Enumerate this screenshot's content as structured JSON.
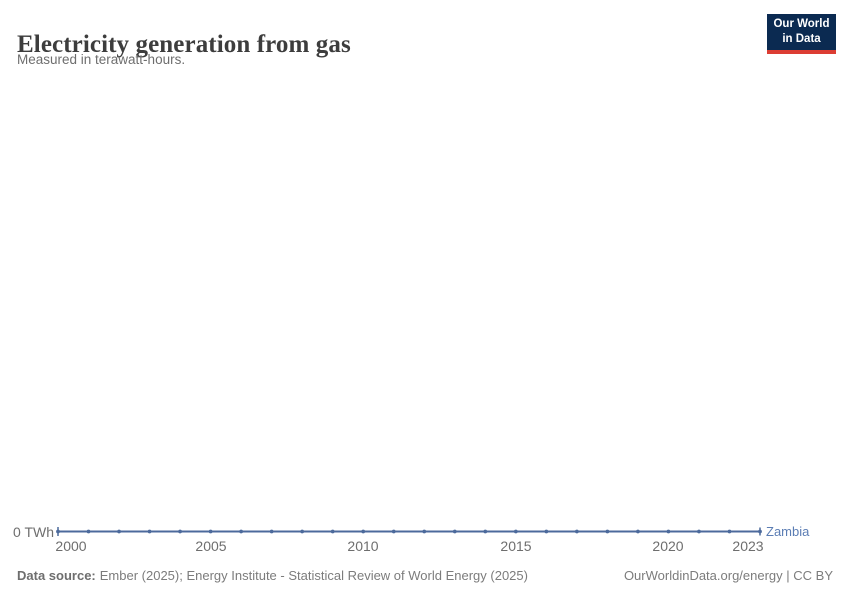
{
  "header": {
    "title": "Electricity generation from gas",
    "subtitle": "Measured in terawatt-hours.",
    "logo": {
      "line1": "Our World",
      "line2": "in Data"
    }
  },
  "chart_data": {
    "type": "line",
    "title": "Electricity generation from gas",
    "subtitle": "Measured in terawatt-hours.",
    "unit": "TWh",
    "x": [
      2000,
      2001,
      2002,
      2003,
      2004,
      2005,
      2006,
      2007,
      2008,
      2009,
      2010,
      2011,
      2012,
      2013,
      2014,
      2015,
      2016,
      2017,
      2018,
      2019,
      2020,
      2021,
      2022,
      2023
    ],
    "x_tick_labels": [
      "2000",
      "2005",
      "2010",
      "2015",
      "2020",
      "2023"
    ],
    "y_tick_labels": [
      "0 TWh"
    ],
    "ylim": [
      0,
      0
    ],
    "grid": false,
    "legend": "end-of-line-label",
    "series": [
      {
        "name": "Zambia",
        "color": "#4C6A9C",
        "values": [
          0,
          0,
          0,
          0,
          0,
          0,
          0,
          0,
          0,
          0,
          0,
          0,
          0,
          0,
          0,
          0,
          0,
          0,
          0,
          0,
          0,
          0,
          0,
          0
        ]
      }
    ]
  },
  "axis": {
    "zero_label": "0 TWh"
  },
  "footer": {
    "datasource_label": "Data source:",
    "datasource_text": "Ember (2025); Energy Institute - Statistical Review of World Energy (2025)",
    "link_text": "OurWorldinData.org/energy | CC BY"
  },
  "colors": {
    "line": "#4C6A9C",
    "entity_label": "#5B7DB4",
    "logo_bg": "#0B2A51",
    "logo_accent": "#DC3D33"
  }
}
